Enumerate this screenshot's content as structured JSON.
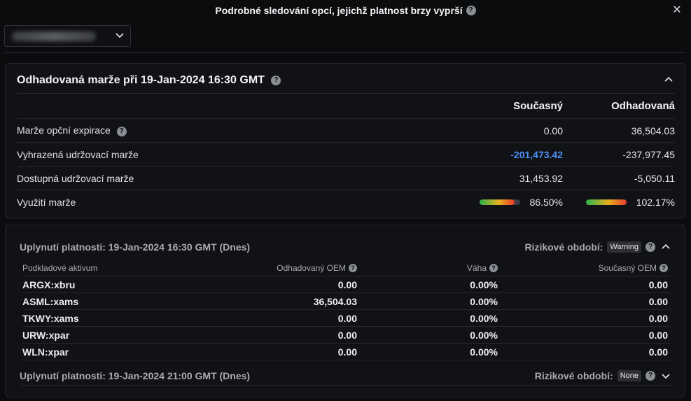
{
  "dialog": {
    "title": "Podrobné sledování opcí, jejichž platnost brzy vyprší",
    "help_glyph": "?",
    "close_glyph": "✕"
  },
  "account_select": {
    "value": ""
  },
  "margin_panel": {
    "title": "Odhadovaná marže při 19-Jan-2024 16:30 GMT",
    "col_current": "Současný",
    "col_estimated": "Odhadovaná",
    "rows": [
      {
        "label": "Marže opční expirace",
        "current": "0.00",
        "estimated": "36,504.03",
        "help": true
      },
      {
        "label": "Vyhrazená udržovací marže",
        "current": "-201,473.42",
        "estimated": "-237,977.45"
      },
      {
        "label": "Dostupná udržovací marže",
        "current": "31,453.92",
        "estimated": "-5,050.11"
      },
      {
        "label": "Využití marže",
        "current": "86.50%",
        "estimated": "102.17%",
        "current_level": 0.865,
        "estimated_level": 1.0217
      }
    ]
  },
  "expiries": [
    {
      "title": "Uplynutí platnosti: 19-Jan-2024 16:30 GMT (Dnes)",
      "risk_label": "Rizikové období:",
      "risk_badge": "Warning",
      "expanded": true,
      "columns": [
        "Podkladové aktivum",
        "Odhadovaný OEM",
        "Váha",
        "Současný OEM"
      ],
      "rows": [
        {
          "asset": "ARGX:xbru",
          "est_oem": "0.00",
          "weight": "0.00%",
          "cur_oem": "0.00"
        },
        {
          "asset": "ASML:xams",
          "est_oem": "36,504.03",
          "weight": "0.00%",
          "cur_oem": "0.00"
        },
        {
          "asset": "TKWY:xams",
          "est_oem": "0.00",
          "weight": "0.00%",
          "cur_oem": "0.00"
        },
        {
          "asset": "URW:xpar",
          "est_oem": "0.00",
          "weight": "0.00%",
          "cur_oem": "0.00"
        },
        {
          "asset": "WLN:xpar",
          "est_oem": "0.00",
          "weight": "0.00%",
          "cur_oem": "0.00"
        }
      ]
    },
    {
      "title": "Uplynutí platnosti: 19-Jan-2024 21:00 GMT (Dnes)",
      "risk_label": "Rizikové období:",
      "risk_badge": "None",
      "expanded": false
    }
  ],
  "colors": {
    "background": "#0b0c0e",
    "panel": "#111215",
    "accent_blue": "#4e8ff7",
    "bar_green": "#2bb24c",
    "bar_red": "#e53a2a"
  },
  "icons": [
    "help-icon",
    "close-icon",
    "chevron-down-icon",
    "chevron-up-icon"
  ]
}
